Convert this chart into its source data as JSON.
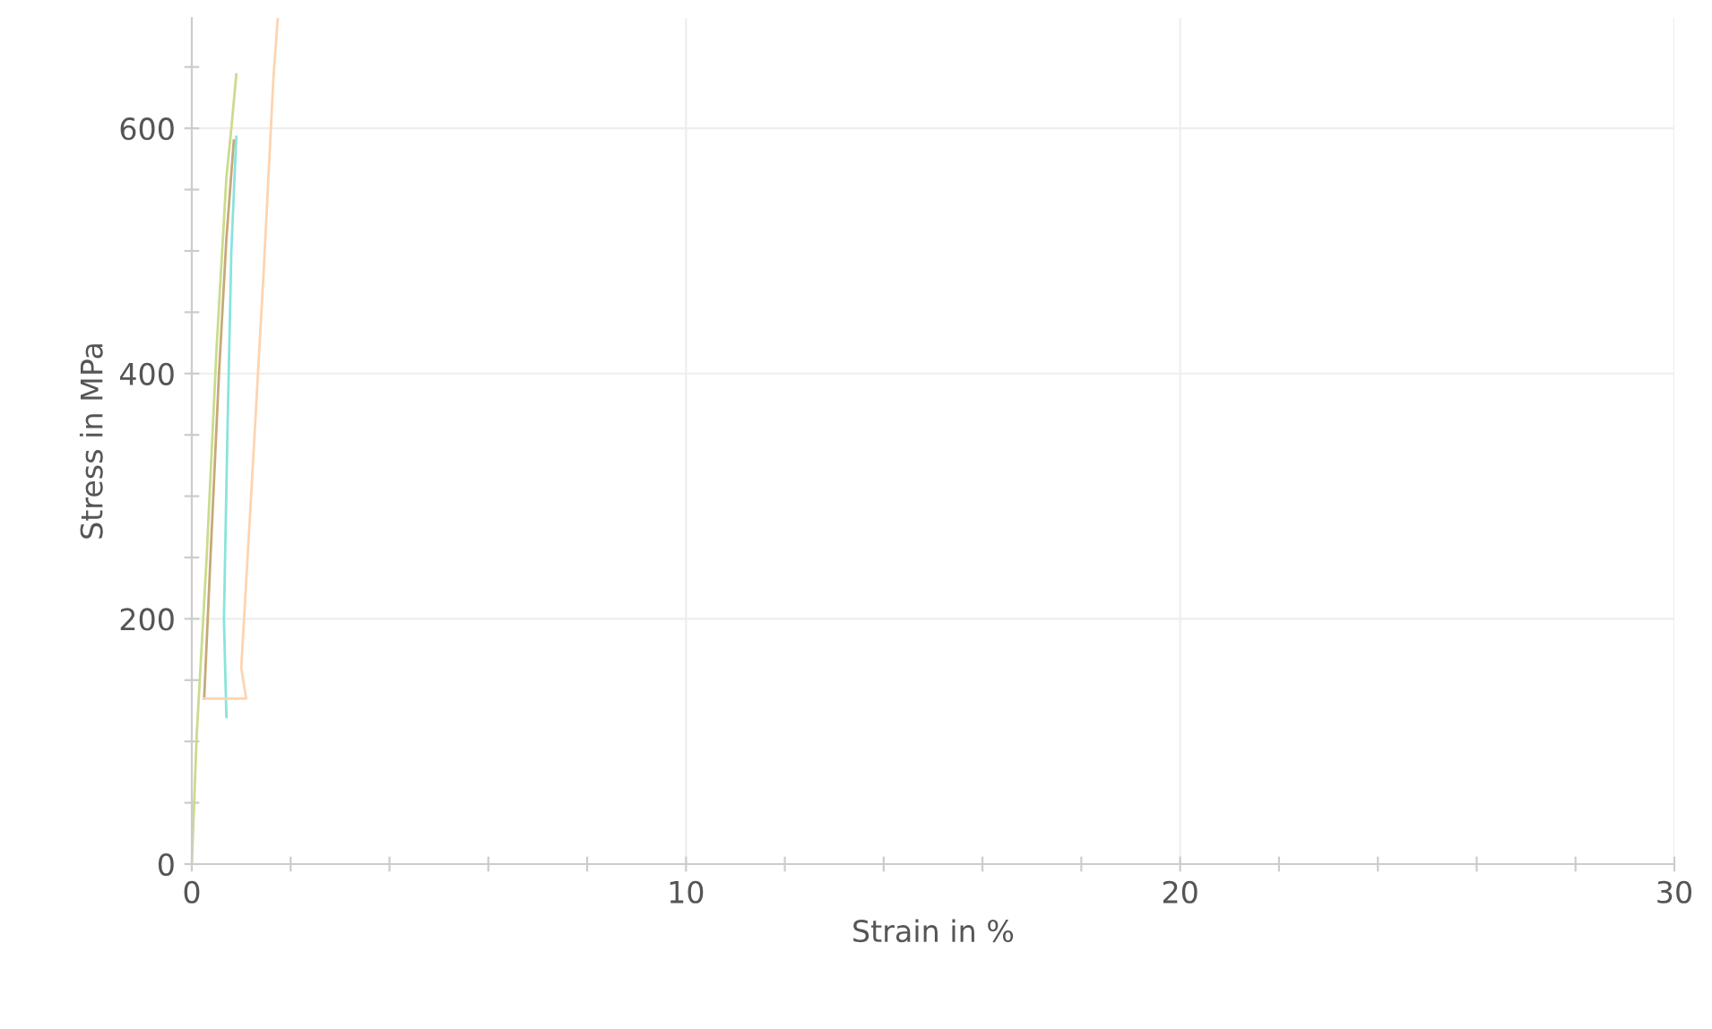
{
  "chart_data": {
    "type": "line",
    "xlabel": "Strain in %",
    "ylabel": "Stress in MPa",
    "xlim": [
      0,
      30
    ],
    "ylim": [
      0,
      690
    ],
    "xticks": [
      0,
      {
        "value": 2,
        "label": null
      },
      {
        "value": 4,
        "label": null
      },
      {
        "value": 6,
        "label": null
      },
      {
        "value": 8,
        "label": null
      },
      10,
      {
        "value": 12,
        "label": null
      },
      {
        "value": 14,
        "label": null
      },
      {
        "value": 16,
        "label": null
      },
      {
        "value": 18,
        "label": null
      },
      20,
      {
        "value": 22,
        "label": null
      },
      {
        "value": 24,
        "label": null
      },
      {
        "value": 26,
        "label": null
      },
      {
        "value": 28,
        "label": null
      },
      30
    ],
    "yticks": [
      0,
      {
        "value": 50,
        "label": null
      },
      {
        "value": 100,
        "label": null
      },
      {
        "value": 150,
        "label": null
      },
      200,
      {
        "value": 250,
        "label": null
      },
      {
        "value": 300,
        "label": null
      },
      {
        "value": 350,
        "label": null
      },
      400,
      {
        "value": 450,
        "label": null
      },
      {
        "value": 500,
        "label": null
      },
      {
        "value": 550,
        "label": null
      },
      600,
      {
        "value": 650,
        "label": null
      }
    ],
    "grid": true,
    "marker": "none",
    "line_style": "solid",
    "series": [
      {
        "color": "#c9dc8c",
        "x": [
          0,
          0.1,
          0.3,
          0.5,
          0.7,
          0.8,
          0.9
        ],
        "values": [
          0,
          106,
          250,
          420,
          560,
          600,
          644
        ]
      },
      {
        "color": "#c8a878",
        "x": [
          0.25,
          0.4,
          0.55,
          0.7,
          0.85
        ],
        "values": [
          135,
          270,
          400,
          510,
          590
        ]
      },
      {
        "color": "#88e4dc",
        "x": [
          0.7,
          0.65,
          0.72,
          0.8,
          0.9
        ],
        "values": [
          120,
          200,
          350,
          500,
          593
        ]
      },
      {
        "color": "#fdd4b0",
        "x": [
          0.25,
          1.1,
          1.0,
          1.2,
          1.45,
          1.65,
          1.74
        ],
        "values": [
          135,
          135,
          160,
          300,
          480,
          640,
          690
        ]
      }
    ]
  }
}
